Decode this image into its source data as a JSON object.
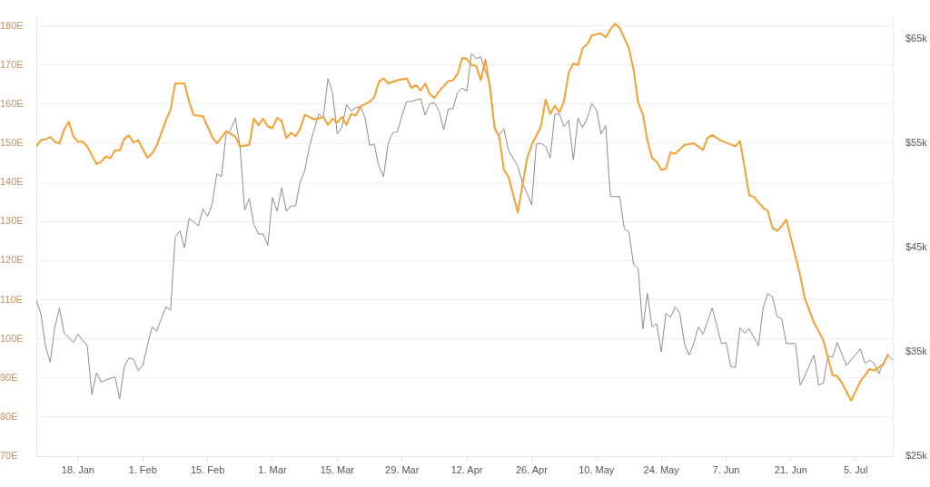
{
  "chart_data": {
    "type": "line",
    "xlim": [
      "--01-09",
      "--07-13"
    ],
    "xticks": [
      {
        "value": "--01-18",
        "label": "18. Jan"
      },
      {
        "value": "--02-01",
        "label": "1. Feb"
      },
      {
        "value": "--02-15",
        "label": "15. Feb"
      },
      {
        "value": "--03-01",
        "label": "1. Mar"
      },
      {
        "value": "--03-15",
        "label": "15. Mar"
      },
      {
        "value": "--03-29",
        "label": "29. Mar"
      },
      {
        "value": "--04-12",
        "label": "12. Apr"
      },
      {
        "value": "--04-26",
        "label": "26. Apr"
      },
      {
        "value": "--05-10",
        "label": "10. May"
      },
      {
        "value": "--05-24",
        "label": "24. May"
      },
      {
        "value": "--06-07",
        "label": "7. Jun"
      },
      {
        "value": "--06-21",
        "label": "21. Jun"
      },
      {
        "value": "--07-05",
        "label": "5. Jul"
      }
    ],
    "ylim": [
      70,
      182
    ],
    "yticks": [
      {
        "value": 70,
        "label": "70E"
      },
      {
        "value": 80,
        "label": "80E"
      },
      {
        "value": 90,
        "label": "90E"
      },
      {
        "value": 100,
        "label": "100E"
      },
      {
        "value": 110,
        "label": "110E"
      },
      {
        "value": 120,
        "label": "120E"
      },
      {
        "value": 130,
        "label": "130E"
      },
      {
        "value": 140,
        "label": "140E"
      },
      {
        "value": 150,
        "label": "150E"
      },
      {
        "value": 160,
        "label": "160E"
      },
      {
        "value": 170,
        "label": "170E"
      },
      {
        "value": 180,
        "label": "180E"
      }
    ],
    "y2lim": [
      25000,
      67000
    ],
    "y2ticks": [
      {
        "value": 25000,
        "label": "$25k"
      },
      {
        "value": 35000,
        "label": "$35k"
      },
      {
        "value": 45000,
        "label": "$45k"
      },
      {
        "value": 55000,
        "label": "$55k"
      },
      {
        "value": 65000,
        "label": "$65k"
      }
    ],
    "grid": "y",
    "legend": false,
    "series": [
      {
        "color": "#f5a033",
        "axis": "y",
        "x": [
          "--01-09",
          "--01-10",
          "--01-11",
          "--01-12",
          "--01-13",
          "--01-14",
          "--01-15",
          "--01-16",
          "--01-17",
          "--01-18",
          "--01-19",
          "--01-20",
          "--01-22",
          "--01-23",
          "--01-24",
          "--01-25",
          "--01-26",
          "--01-27",
          "--01-28",
          "--01-29",
          "--01-30",
          "--01-31",
          "--02-02",
          "--02-03",
          "--02-04",
          "--02-06",
          "--02-07",
          "--02-08",
          "--02-10",
          "--02-11",
          "--02-12",
          "--02-14",
          "--02-16",
          "--02-17",
          "--02-19",
          "--02-21",
          "--02-22",
          "--02-24",
          "--02-25",
          "--02-26",
          "--02-27",
          "--02-28",
          "--03-01",
          "--03-02",
          "--03-03",
          "--03-04",
          "--03-05",
          "--03-06",
          "--03-07",
          "--03-08",
          "--03-10",
          "--03-12",
          "--03-13",
          "--03-14",
          "--03-15",
          "--03-16",
          "--03-17",
          "--03-18",
          "--03-19",
          "--03-20",
          "--03-22",
          "--03-23",
          "--03-24",
          "--03-25",
          "--03-26",
          "--03-28",
          "--03-30",
          "--03-31",
          "--04-01",
          "--04-02",
          "--04-03",
          "--04-04",
          "--04-05",
          "--04-06",
          "--04-08",
          "--04-09",
          "--04-10",
          "--04-11",
          "--04-12",
          "--04-13",
          "--04-14",
          "--04-15",
          "--04-16",
          "--04-17",
          "--04-18",
          "--04-19",
          "--04-20",
          "--04-21",
          "--04-23",
          "--04-25",
          "--04-26",
          "--04-28",
          "--04-29",
          "--04-30",
          "--05-01",
          "--05-02",
          "--05-03",
          "--05-04",
          "--05-05",
          "--05-06",
          "--05-07",
          "--05-08",
          "--05-09",
          "--05-10",
          "--05-11",
          "--05-12",
          "--05-13",
          "--05-14",
          "--05-15",
          "--05-17",
          "--05-18",
          "--05-19",
          "--05-20",
          "--05-21",
          "--05-22",
          "--05-23",
          "--05-24",
          "--05-25",
          "--05-26",
          "--05-27",
          "--05-29",
          "--05-31",
          "--06-02",
          "--06-03",
          "--06-04",
          "--06-06",
          "--06-07",
          "--06-09",
          "--06-10",
          "--06-11",
          "--06-12",
          "--06-13",
          "--06-15",
          "--06-16",
          "--06-17",
          "--06-18",
          "--06-19",
          "--06-20",
          "--06-23",
          "--06-24",
          "--06-26",
          "--06-28",
          "--06-30",
          "--07-01",
          "--07-02",
          "--07-04",
          "--07-06",
          "--07-08",
          "--07-09",
          "--07-11",
          "--07-12"
        ],
        "values": [
          149.2,
          150.8,
          151.0,
          151.6,
          150.4,
          149.9,
          153.5,
          155.5,
          151.7,
          150.4,
          150.4,
          149.2,
          144.7,
          145.3,
          146.6,
          146.2,
          148.2,
          148.2,
          151.2,
          152.0,
          150.2,
          150.8,
          146.3,
          147.4,
          149.4,
          155.9,
          158.6,
          165.3,
          165.3,
          160.6,
          157.2,
          156.9,
          151.6,
          150.0,
          153.1,
          151.7,
          149.2,
          149.6,
          156.3,
          154.6,
          156.3,
          154.3,
          153.9,
          156.5,
          155.7,
          151.3,
          152.7,
          151.8,
          153.7,
          157.3,
          156.1,
          156.7,
          154.7,
          156.3,
          155.3,
          156.7,
          154.7,
          157.5,
          157.1,
          159.4,
          160.6,
          161.8,
          165.7,
          166.6,
          165.3,
          166.1,
          166.6,
          164.1,
          164.9,
          163.5,
          165.3,
          162.6,
          161.6,
          163.3,
          165.9,
          166.1,
          167.7,
          171.8,
          171.6,
          170.0,
          169.8,
          166.1,
          171.4,
          164.1,
          153.9,
          151.6,
          143.3,
          141.4,
          132.3,
          146.1,
          149.6,
          154.3,
          161.2,
          157.5,
          159.6,
          157.9,
          160.8,
          168.1,
          170.4,
          170.0,
          174.3,
          175.3,
          177.6,
          177.9,
          178.1,
          177.1,
          179.1,
          180.6,
          179.5,
          174.3,
          168.9,
          160.4,
          157.5,
          150.8,
          146.2,
          145.3,
          143.2,
          143.5,
          147.7,
          147.3,
          149.6,
          150.0,
          148.3,
          151.4,
          152.1,
          150.6,
          150.2,
          149.2,
          150.6,
          143.7,
          136.7,
          136.3,
          133.5,
          132.7,
          128.4,
          127.6,
          128.8,
          130.5,
          116.2,
          110.3,
          104.1,
          99.7,
          90.7,
          90.5,
          88.8,
          84.2,
          89.1,
          92.3,
          91.9,
          93.5,
          96.2
        ]
      },
      {
        "color": "#8c8c8c",
        "axis": "y2",
        "x": [
          "--01-09",
          "--01-10",
          "--01-11",
          "--01-12",
          "--01-13",
          "--01-14",
          "--01-15",
          "--01-16",
          "--01-17",
          "--01-18",
          "--01-19",
          "--01-20",
          "--01-21",
          "--01-22",
          "--01-23",
          "--01-24",
          "--01-26",
          "--01-27",
          "--01-28",
          "--01-29",
          "--01-30",
          "--01-31",
          "--02-01",
          "--02-02",
          "--02-03",
          "--02-04",
          "--02-05",
          "--02-06",
          "--02-07",
          "--02-08",
          "--02-09",
          "--02-10",
          "--02-11",
          "--02-13",
          "--02-14",
          "--02-15",
          "--02-16",
          "--02-17",
          "--02-18",
          "--02-19",
          "--02-20",
          "--02-21",
          "--02-22",
          "--02-23",
          "--02-24",
          "--02-25",
          "--02-26",
          "--02-27",
          "--02-28",
          "--03-01",
          "--03-02",
          "--03-03",
          "--03-04",
          "--03-05",
          "--03-06",
          "--03-07",
          "--03-08",
          "--03-09",
          "--03-10",
          "--03-11",
          "--03-12",
          "--03-13",
          "--03-14",
          "--03-15",
          "--03-16",
          "--03-17",
          "--03-18",
          "--03-19",
          "--03-20",
          "--03-21",
          "--03-22",
          "--03-23",
          "--03-24",
          "--03-25",
          "--03-26",
          "--03-27",
          "--03-28",
          "--03-29",
          "--03-30",
          "--03-31",
          "--04-02",
          "--04-03",
          "--04-04",
          "--04-05",
          "--04-06",
          "--04-07",
          "--04-08",
          "--04-09",
          "--04-10",
          "--04-11",
          "--04-12",
          "--04-13",
          "--04-14",
          "--04-15",
          "--04-16",
          "--04-17",
          "--04-18",
          "--04-19",
          "--04-20",
          "--04-21",
          "--04-23",
          "--04-24",
          "--04-25",
          "--04-26",
          "--04-27",
          "--04-28",
          "--04-29",
          "--04-30",
          "--05-01",
          "--05-02",
          "--05-03",
          "--05-04",
          "--05-05",
          "--05-06",
          "--05-07",
          "--05-08",
          "--05-09",
          "--05-10",
          "--05-11",
          "--05-12",
          "--05-13",
          "--05-14",
          "--05-15",
          "--05-16",
          "--05-17",
          "--05-18",
          "--05-19",
          "--05-20",
          "--05-21",
          "--05-22",
          "--05-23",
          "--05-24",
          "--05-25",
          "--05-26",
          "--05-27",
          "--05-28",
          "--05-29",
          "--05-30",
          "--05-31",
          "--06-01",
          "--06-02",
          "--06-04",
          "--06-06",
          "--06-07",
          "--06-08",
          "--06-09",
          "--06-10",
          "--06-11",
          "--06-12",
          "--06-14",
          "--06-15",
          "--06-16",
          "--06-17",
          "--06-18",
          "--06-19",
          "--06-20",
          "--06-22",
          "--06-23",
          "--06-24",
          "--06-26",
          "--06-27",
          "--06-28",
          "--06-29",
          "--06-30",
          "--07-01",
          "--07-03",
          "--07-06",
          "--07-07",
          "--07-08",
          "--07-09",
          "--07-10",
          "--07-11",
          "--07-12",
          "--07-13"
        ],
        "values": [
          40000,
          38600,
          35500,
          34000,
          37400,
          39200,
          36800,
          36400,
          35900,
          36700,
          36100,
          35600,
          30900,
          33000,
          32100,
          32300,
          32600,
          30500,
          33600,
          34400,
          34300,
          33200,
          33700,
          35600,
          37400,
          37000,
          38200,
          39300,
          39000,
          46000,
          46600,
          45000,
          47800,
          47100,
          48700,
          48000,
          49200,
          52100,
          51800,
          55900,
          56300,
          57400,
          54700,
          48600,
          49700,
          47200,
          46300,
          46300,
          45200,
          49800,
          48500,
          50700,
          48500,
          49000,
          49000,
          51300,
          52400,
          54700,
          56300,
          57800,
          57500,
          61200,
          59800,
          55900,
          56500,
          58700,
          58100,
          58400,
          58500,
          57500,
          54800,
          54900,
          52800,
          51800,
          55000,
          56000,
          56100,
          57700,
          59000,
          59000,
          59300,
          57700,
          58800,
          58900,
          58100,
          56300,
          58300,
          58300,
          59900,
          60300,
          60000,
          63600,
          63100,
          63300,
          61900,
          60700,
          56300,
          55800,
          56400,
          54300,
          52800,
          51200,
          50200,
          49100,
          54900,
          55000,
          54700,
          53600,
          57800,
          57800,
          56600,
          57200,
          53400,
          57400,
          56500,
          57400,
          58800,
          58200,
          55900,
          56700,
          49900,
          49900,
          49900,
          46800,
          46500,
          43400,
          43000,
          37200,
          40600,
          37400,
          37700,
          35000,
          38700,
          38300,
          39300,
          38700,
          35800,
          34700,
          35800,
          37400,
          36700,
          39200,
          35800,
          35900,
          33600,
          33500,
          37300,
          36800,
          37200,
          35600,
          39200,
          40600,
          40300,
          38400,
          38200,
          35800,
          35800,
          31800,
          32700,
          34700,
          31800,
          32000,
          34600,
          34500,
          35900,
          33700,
          35300,
          33900,
          34200,
          33900,
          32900,
          34000,
          34700,
          34200
        ]
      }
    ]
  }
}
